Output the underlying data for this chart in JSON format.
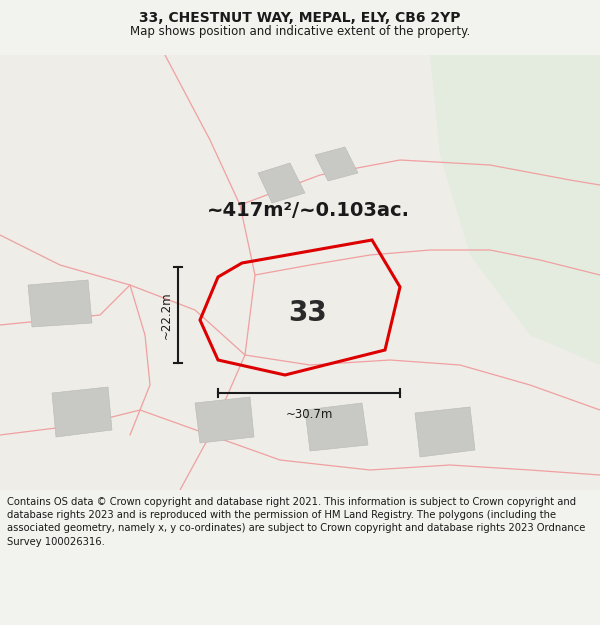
{
  "title": "33, CHESTNUT WAY, MEPAL, ELY, CB6 2YP",
  "subtitle": "Map shows position and indicative extent of the property.",
  "area_label": "~417m²/~0.103ac.",
  "number_label": "33",
  "width_label": "~30.7m",
  "height_label": "~22.2m",
  "footer": "Contains OS data © Crown copyright and database right 2021. This information is subject to Crown copyright and database rights 2023 and is reproduced with the permission of HM Land Registry. The polygons (including the associated geometry, namely x, y co-ordinates) are subject to Crown copyright and database rights 2023 Ordnance Survey 100026316.",
  "bg_color": "#f2f2ee",
  "map_bg": "#eeede8",
  "green_bg": "#e4ece0",
  "red_plot_color": "#dd0000",
  "pink_line_color": "#f0a0a0",
  "gray_building_color": "#c8c8c4",
  "title_fontsize": 10,
  "subtitle_fontsize": 8.5,
  "footer_fontsize": 7.2,
  "area_label_fontsize": 14,
  "number_label_fontsize": 20,
  "dim_label_fontsize": 8.5
}
